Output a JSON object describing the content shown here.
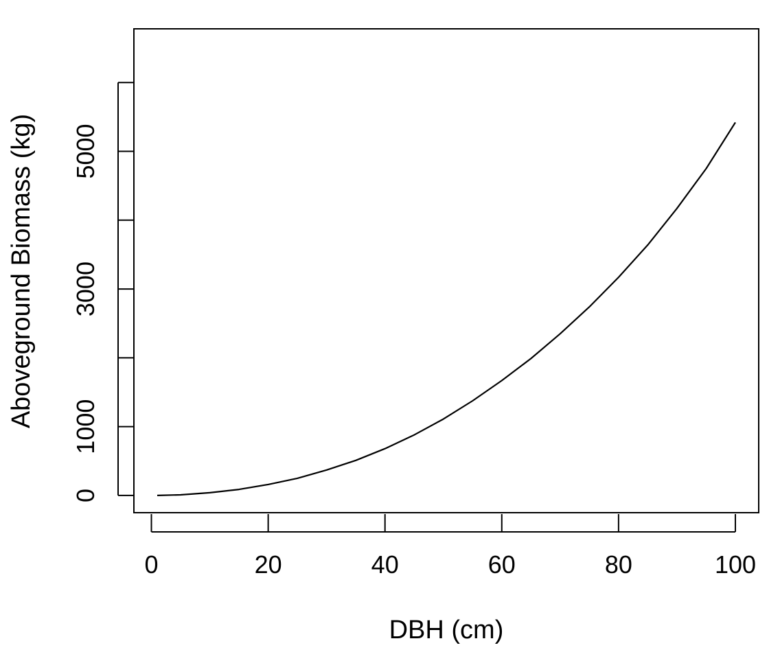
{
  "chart_data": {
    "type": "line",
    "title": "",
    "xlabel": "DBH (cm)",
    "ylabel": "Aboveground Biomass (kg)",
    "xlim": [
      -3,
      104
    ],
    "ylim": [
      -250,
      6780
    ],
    "x_ticks": [
      0,
      20,
      40,
      60,
      80,
      100
    ],
    "x_tick_labels": [
      "0",
      "20",
      "40",
      "60",
      "80",
      "100"
    ],
    "y_ticks": [
      0,
      1000,
      2000,
      3000,
      4000,
      5000,
      6000
    ],
    "y_tick_labels": [
      "0",
      "1000",
      "",
      "3000",
      "",
      "5000",
      ""
    ],
    "grid": false,
    "legend": "none",
    "series": [
      {
        "color": "#000000",
        "x": [
          1,
          5,
          10,
          15,
          20,
          25,
          30,
          35,
          40,
          45,
          50,
          55,
          60,
          65,
          70,
          75,
          80,
          85,
          90,
          95,
          100
        ],
        "y": [
          0,
          9,
          40,
          88,
          160,
          250,
          370,
          510,
          680,
          880,
          1110,
          1375,
          1670,
          1990,
          2350,
          2740,
          3170,
          3640,
          4170,
          4750,
          5420
        ]
      }
    ]
  }
}
